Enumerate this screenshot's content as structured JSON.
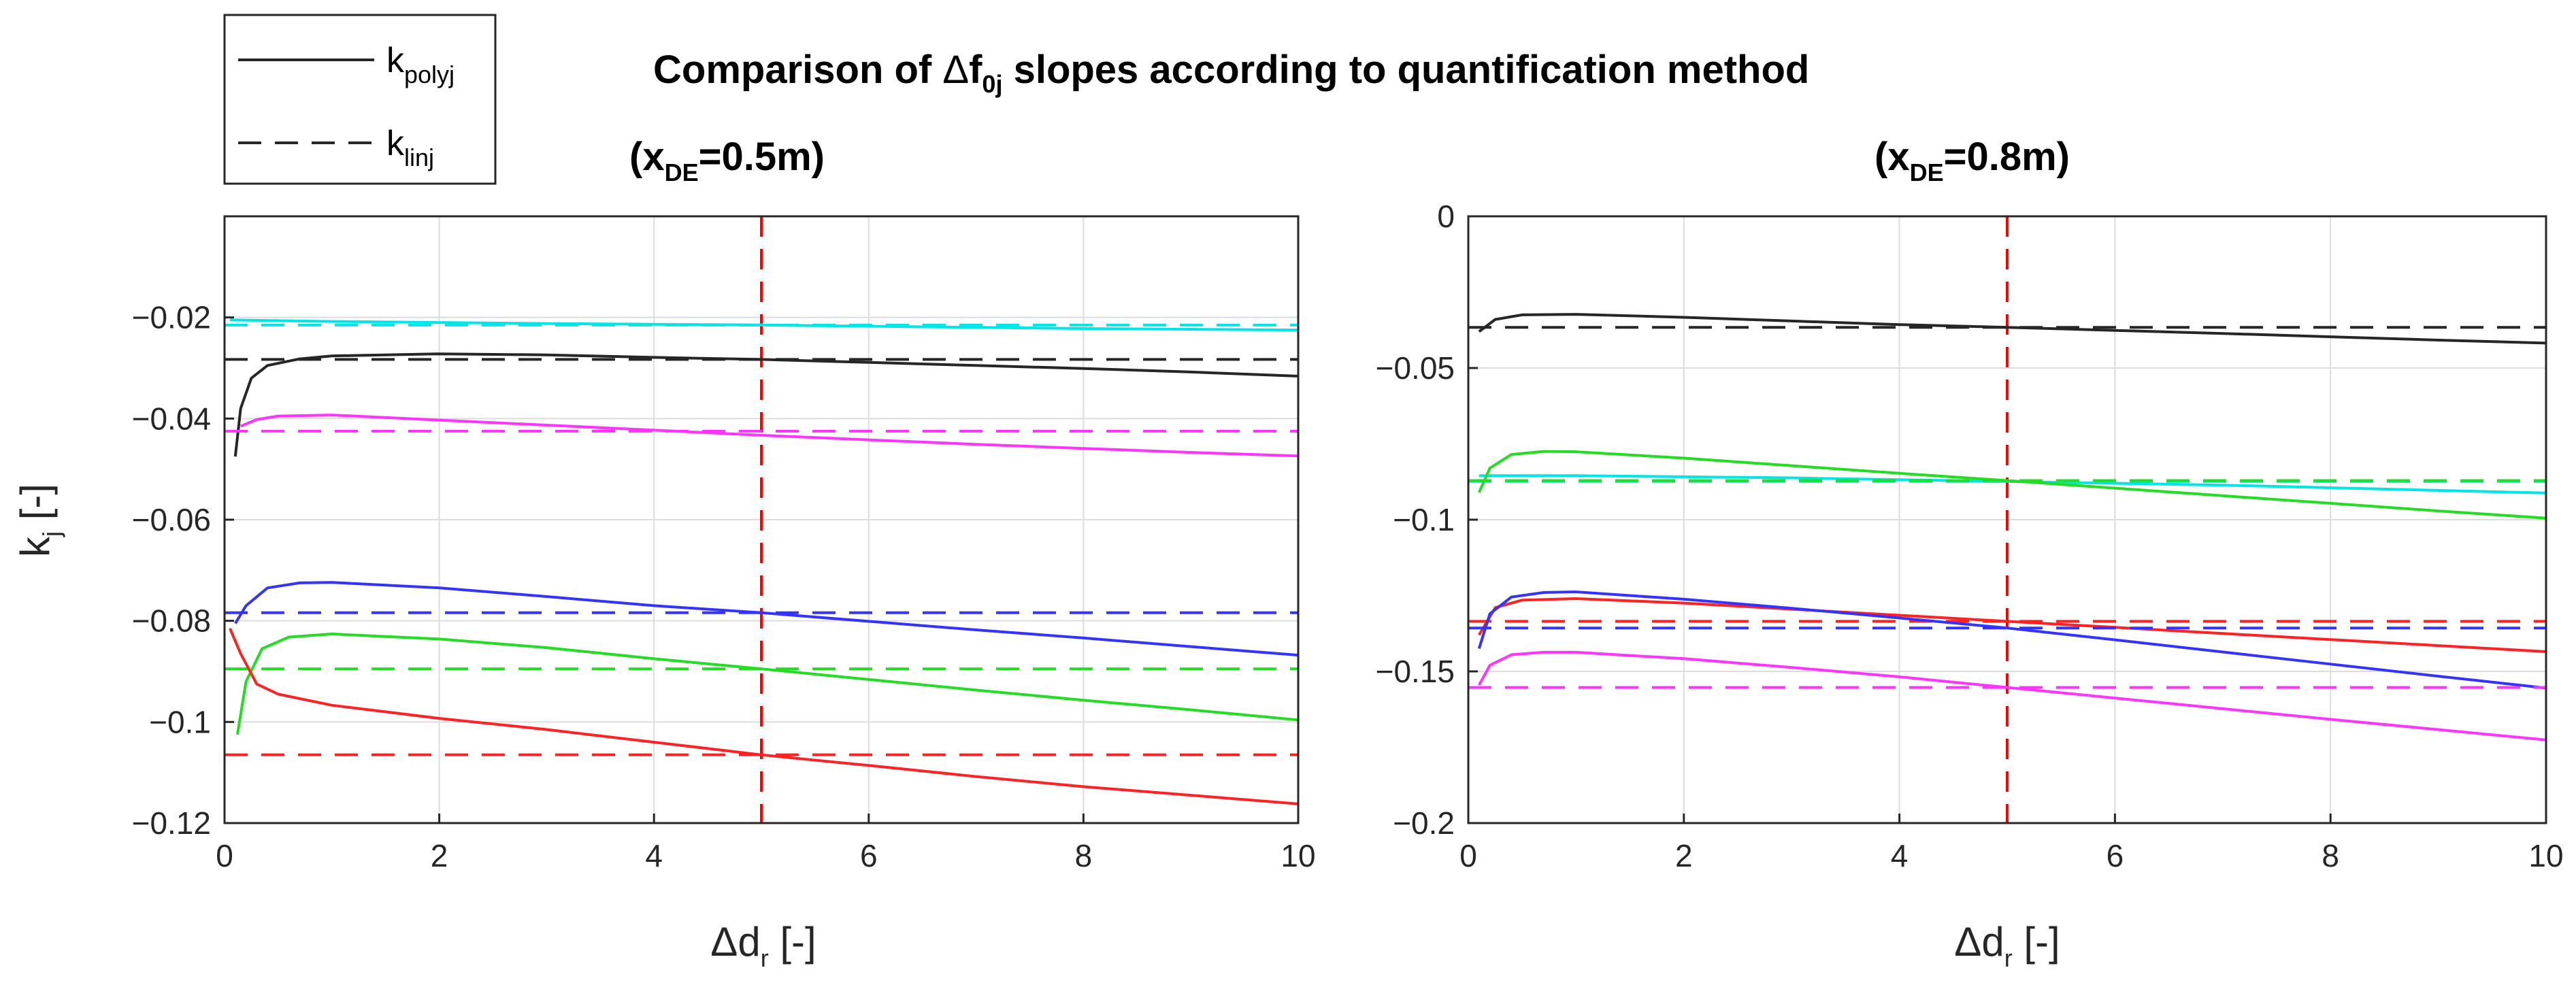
{
  "figure_title": {
    "prefix": "Comparison of ",
    "delta": "Δ",
    "base": "f",
    "sub": "0j",
    "suffix": " slopes according to quantification method"
  },
  "legend": {
    "items": [
      {
        "base": "k",
        "sub": "polyj",
        "style": "solid"
      },
      {
        "base": "k",
        "sub": "linj",
        "style": "dashed"
      }
    ]
  },
  "colors": {
    "black": "#262626",
    "cyan": "#00e6e6",
    "magenta": "#ff33ff",
    "blue": "#3333ff",
    "green": "#22dd22",
    "red": "#ff2222",
    "vline": "#ff0000",
    "grid": "#dcdcdc"
  },
  "chart_data": [
    {
      "type": "line",
      "title_base": "(x",
      "title_sub": "DE",
      "title_suffix": "=0.5m)",
      "xlabel": {
        "delta": "Δ",
        "base": "d",
        "sub": "r",
        "suffix": " [-]"
      },
      "ylabel": {
        "base": "k",
        "sub": "j",
        "suffix": " [-]"
      },
      "xlim": [
        0,
        10
      ],
      "ylim": [
        -0.12,
        0
      ],
      "xticks": [
        0,
        2,
        4,
        6,
        8,
        10
      ],
      "yticks": [
        -0.12,
        -0.1,
        -0.08,
        -0.06,
        -0.04,
        -0.02
      ],
      "ytick_labels": [
        "−0.12",
        "−0.1",
        "−0.08",
        "−0.06",
        "−0.04",
        "−0.02"
      ],
      "xtick_labels": [
        "0",
        "2",
        "4",
        "6",
        "8",
        "10"
      ],
      "vline_x": 5,
      "grid": true,
      "series": [
        {
          "name": "cyan",
          "color": "cyan",
          "poly": [
            [
              0.05,
              -0.0205
            ],
            [
              1,
              -0.0208
            ],
            [
              3,
              -0.0212
            ],
            [
              5,
              -0.0215
            ],
            [
              8,
              -0.0222
            ],
            [
              10,
              -0.0225
            ]
          ],
          "lin": -0.0215
        },
        {
          "name": "black",
          "color": "black",
          "poly": [
            [
              0.1,
              -0.0475
            ],
            [
              0.15,
              -0.038
            ],
            [
              0.25,
              -0.032
            ],
            [
              0.4,
              -0.0295
            ],
            [
              0.7,
              -0.0282
            ],
            [
              1,
              -0.0276
            ],
            [
              2,
              -0.0272
            ],
            [
              3,
              -0.0274
            ],
            [
              4,
              -0.0279
            ],
            [
              5,
              -0.0283
            ],
            [
              6,
              -0.0289
            ],
            [
              7,
              -0.0295
            ],
            [
              8,
              -0.0301
            ],
            [
              9,
              -0.0308
            ],
            [
              10,
              -0.0316
            ]
          ],
          "lin": -0.0283
        },
        {
          "name": "magenta",
          "color": "magenta",
          "poly": [
            [
              0.15,
              -0.0415
            ],
            [
              0.3,
              -0.0402
            ],
            [
              0.5,
              -0.0395
            ],
            [
              1,
              -0.0393
            ],
            [
              2,
              -0.0403
            ],
            [
              3,
              -0.0413
            ],
            [
              4,
              -0.0423
            ],
            [
              5,
              -0.0433
            ],
            [
              6,
              -0.0442
            ],
            [
              7,
              -0.0451
            ],
            [
              8,
              -0.0459
            ],
            [
              9,
              -0.0467
            ],
            [
              10,
              -0.0474
            ]
          ],
          "lin": -0.0425
        },
        {
          "name": "blue",
          "color": "blue",
          "poly": [
            [
              0.1,
              -0.0805
            ],
            [
              0.2,
              -0.077
            ],
            [
              0.4,
              -0.0735
            ],
            [
              0.7,
              -0.0725
            ],
            [
              1,
              -0.0724
            ],
            [
              2,
              -0.0735
            ],
            [
              3,
              -0.0752
            ],
            [
              4,
              -0.077
            ],
            [
              5,
              -0.0784
            ],
            [
              6,
              -0.0801
            ],
            [
              7,
              -0.0818
            ],
            [
              8,
              -0.0834
            ],
            [
              9,
              -0.0851
            ],
            [
              10,
              -0.0868
            ]
          ],
          "lin": -0.0784
        },
        {
          "name": "green",
          "color": "green",
          "poly": [
            [
              0.12,
              -0.1025
            ],
            [
              0.2,
              -0.092
            ],
            [
              0.35,
              -0.0855
            ],
            [
              0.6,
              -0.0832
            ],
            [
              1,
              -0.0826
            ],
            [
              2,
              -0.0836
            ],
            [
              3,
              -0.0853
            ],
            [
              4,
              -0.0875
            ],
            [
              5,
              -0.0895
            ],
            [
              6,
              -0.0916
            ],
            [
              7,
              -0.0937
            ],
            [
              8,
              -0.0957
            ],
            [
              9,
              -0.0976
            ],
            [
              10,
              -0.0996
            ]
          ],
          "lin": -0.0895
        },
        {
          "name": "red",
          "color": "red",
          "poly": [
            [
              0.05,
              -0.0815
            ],
            [
              0.15,
              -0.0865
            ],
            [
              0.3,
              -0.0925
            ],
            [
              0.5,
              -0.0945
            ],
            [
              1,
              -0.0967
            ],
            [
              2,
              -0.0993
            ],
            [
              3,
              -0.1015
            ],
            [
              4,
              -0.104
            ],
            [
              5,
              -0.1065
            ],
            [
              6,
              -0.1086
            ],
            [
              7,
              -0.1108
            ],
            [
              8,
              -0.1128
            ],
            [
              9,
              -0.1145
            ],
            [
              10,
              -0.1162
            ]
          ],
          "lin": -0.1065
        }
      ]
    },
    {
      "type": "line",
      "title_base": "(x",
      "title_sub": "DE",
      "title_suffix": "=0.8m)",
      "xlabel": {
        "delta": "Δ",
        "base": "d",
        "sub": "r",
        "suffix": " [-]"
      },
      "xlim": [
        0,
        10
      ],
      "ylim": [
        -0.2,
        0
      ],
      "xticks": [
        0,
        2,
        4,
        6,
        8,
        10
      ],
      "yticks": [
        -0.2,
        -0.15,
        -0.1,
        -0.05,
        0
      ],
      "ytick_labels": [
        "−0.2",
        "−0.15",
        "−0.1",
        "−0.05",
        "0"
      ],
      "xtick_labels": [
        "0",
        "2",
        "4",
        "6",
        "8",
        "10"
      ],
      "vline_x": 5,
      "grid": true,
      "series": [
        {
          "name": "black",
          "color": "black",
          "poly": [
            [
              0.1,
              -0.038
            ],
            [
              0.25,
              -0.034
            ],
            [
              0.5,
              -0.0325
            ],
            [
              1,
              -0.0323
            ],
            [
              2,
              -0.0333
            ],
            [
              3,
              -0.0345
            ],
            [
              4,
              -0.0357
            ],
            [
              5,
              -0.0366
            ],
            [
              6,
              -0.0376
            ],
            [
              7,
              -0.0386
            ],
            [
              8,
              -0.0397
            ],
            [
              9,
              -0.0408
            ],
            [
              10,
              -0.0418
            ]
          ],
          "lin": -0.0366
        },
        {
          "name": "cyan",
          "color": "cyan",
          "poly": [
            [
              0.1,
              -0.0855
            ],
            [
              1,
              -0.0855
            ],
            [
              3,
              -0.0862
            ],
            [
              5,
              -0.0874
            ],
            [
              7,
              -0.0886
            ],
            [
              10,
              -0.0912
            ]
          ],
          "lin": -0.0874
        },
        {
          "name": "green",
          "color": "green",
          "poly": [
            [
              0.1,
              -0.091
            ],
            [
              0.2,
              -0.083
            ],
            [
              0.4,
              -0.0785
            ],
            [
              0.7,
              -0.0775
            ],
            [
              1,
              -0.0776
            ],
            [
              2,
              -0.0797
            ],
            [
              3,
              -0.0822
            ],
            [
              4,
              -0.0847
            ],
            [
              5,
              -0.0871
            ],
            [
              6,
              -0.0896
            ],
            [
              7,
              -0.0921
            ],
            [
              8,
              -0.0946
            ],
            [
              9,
              -0.0971
            ],
            [
              10,
              -0.0995
            ]
          ],
          "lin": -0.0871
        },
        {
          "name": "red",
          "color": "red",
          "poly": [
            [
              0.1,
              -0.138
            ],
            [
              0.25,
              -0.129
            ],
            [
              0.5,
              -0.1265
            ],
            [
              1,
              -0.126
            ],
            [
              2,
              -0.1275
            ],
            [
              3,
              -0.1295
            ],
            [
              4,
              -0.1315
            ],
            [
              5,
              -0.1335
            ],
            [
              6,
              -0.1355
            ],
            [
              7,
              -0.1375
            ],
            [
              8,
              -0.1395
            ],
            [
              9,
              -0.1415
            ],
            [
              10,
              -0.1435
            ]
          ],
          "lin": -0.1335
        },
        {
          "name": "blue",
          "color": "blue",
          "poly": [
            [
              0.1,
              -0.1425
            ],
            [
              0.2,
              -0.131
            ],
            [
              0.4,
              -0.1255
            ],
            [
              0.7,
              -0.124
            ],
            [
              1,
              -0.1238
            ],
            [
              2,
              -0.1262
            ],
            [
              3,
              -0.1292
            ],
            [
              4,
              -0.1324
            ],
            [
              5,
              -0.1357
            ],
            [
              6,
              -0.1396
            ],
            [
              7,
              -0.1436
            ],
            [
              8,
              -0.1476
            ],
            [
              9,
              -0.1516
            ],
            [
              10,
              -0.1555
            ]
          ],
          "lin": -0.1357
        },
        {
          "name": "magenta",
          "color": "magenta",
          "poly": [
            [
              0.1,
              -0.1545
            ],
            [
              0.2,
              -0.148
            ],
            [
              0.4,
              -0.1445
            ],
            [
              0.7,
              -0.1437
            ],
            [
              1,
              -0.1437
            ],
            [
              2,
              -0.1458
            ],
            [
              3,
              -0.1487
            ],
            [
              4,
              -0.1518
            ],
            [
              5,
              -0.1553
            ],
            [
              6,
              -0.1588
            ],
            [
              7,
              -0.1623
            ],
            [
              8,
              -0.1658
            ],
            [
              9,
              -0.1692
            ],
            [
              10,
              -0.1726
            ]
          ],
          "lin": -0.1553
        }
      ]
    }
  ]
}
